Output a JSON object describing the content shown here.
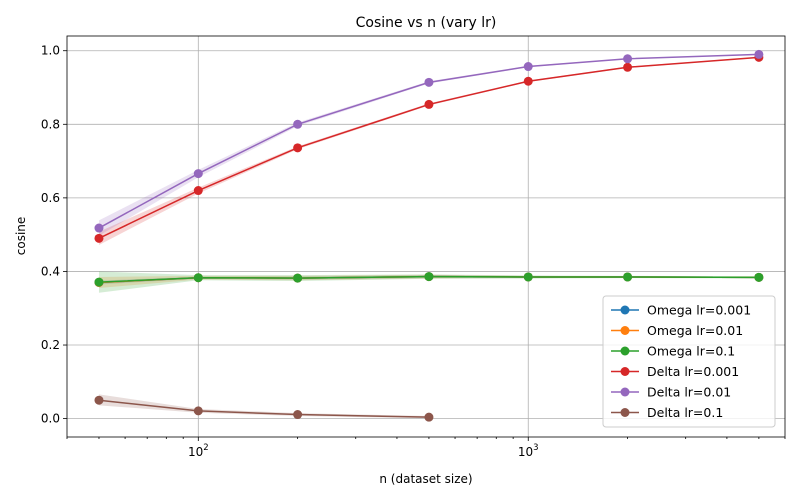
{
  "chart_data": {
    "type": "line",
    "title": "Cosine vs n (vary lr)",
    "xlabel": "n (dataset size)",
    "ylabel": "cosine",
    "xscale": "log",
    "xlim": [
      40,
      6000
    ],
    "ylim": [
      -0.05,
      1.04
    ],
    "grid": true,
    "legend_position": "lower-right",
    "x_ticks": [
      {
        "value": 100,
        "base": "10",
        "exp": "2"
      },
      {
        "value": 1000,
        "base": "10",
        "exp": "3"
      }
    ],
    "y_ticks": [
      {
        "value": 0.0,
        "label": "0.0"
      },
      {
        "value": 0.2,
        "label": "0.2"
      },
      {
        "value": 0.4,
        "label": "0.4"
      },
      {
        "value": 0.6,
        "label": "0.6"
      },
      {
        "value": 0.8,
        "label": "0.8"
      },
      {
        "value": 1.0,
        "label": "1.0"
      }
    ],
    "series": [
      {
        "name": "Omega lr=0.001",
        "color": "#1f77b4",
        "x": [
          50,
          100,
          200,
          500,
          1000,
          2000,
          5000
        ],
        "y": [
          0.37,
          0.383,
          0.382,
          0.386,
          0.385,
          0.385,
          0.384
        ],
        "lower": [
          0.365,
          0.38,
          0.378,
          0.382,
          0.382,
          0.383,
          0.382
        ],
        "upper": [
          0.375,
          0.386,
          0.386,
          0.39,
          0.388,
          0.387,
          0.386
        ]
      },
      {
        "name": "Omega lr=0.01",
        "color": "#ff7f0e",
        "x": [
          50,
          100,
          200,
          500,
          1000,
          2000,
          5000
        ],
        "y": [
          0.37,
          0.383,
          0.382,
          0.386,
          0.385,
          0.385,
          0.384
        ],
        "lower": [
          0.355,
          0.378,
          0.376,
          0.381,
          0.382,
          0.383,
          0.382
        ],
        "upper": [
          0.385,
          0.388,
          0.388,
          0.391,
          0.388,
          0.387,
          0.386
        ]
      },
      {
        "name": "Omega lr=0.1",
        "color": "#2ca02c",
        "x": [
          50,
          100,
          200,
          500,
          1000,
          2000,
          5000
        ],
        "y": [
          0.371,
          0.383,
          0.382,
          0.386,
          0.385,
          0.385,
          0.384
        ],
        "lower": [
          0.342,
          0.376,
          0.374,
          0.38,
          0.381,
          0.382,
          0.381
        ],
        "upper": [
          0.4,
          0.39,
          0.39,
          0.392,
          0.389,
          0.388,
          0.387
        ]
      },
      {
        "name": "Delta lr=0.001",
        "color": "#d62728",
        "x": [
          50,
          100,
          200,
          500,
          1000,
          2000,
          5000
        ],
        "y": [
          0.49,
          0.62,
          0.736,
          0.854,
          0.917,
          0.955,
          0.982
        ],
        "lower": [
          0.472,
          0.612,
          0.732,
          0.851,
          0.915,
          0.953,
          0.981
        ],
        "upper": [
          0.508,
          0.628,
          0.74,
          0.857,
          0.919,
          0.957,
          0.983
        ]
      },
      {
        "name": "Delta lr=0.01",
        "color": "#9467bd",
        "x": [
          50,
          100,
          200,
          500,
          1000,
          2000,
          5000
        ],
        "y": [
          0.518,
          0.666,
          0.8,
          0.914,
          0.957,
          0.978,
          0.99
        ],
        "lower": [
          0.497,
          0.656,
          0.795,
          0.911,
          0.955,
          0.977,
          0.989
        ],
        "upper": [
          0.539,
          0.676,
          0.805,
          0.917,
          0.959,
          0.979,
          0.991
        ]
      },
      {
        "name": "Delta lr=0.1",
        "color": "#8c564b",
        "x": [
          50,
          100,
          200,
          500
        ],
        "y": [
          0.05,
          0.021,
          0.011,
          0.004
        ],
        "lower": [
          0.036,
          0.016,
          0.007,
          0.001
        ],
        "upper": [
          0.066,
          0.026,
          0.015,
          0.007
        ]
      }
    ]
  }
}
